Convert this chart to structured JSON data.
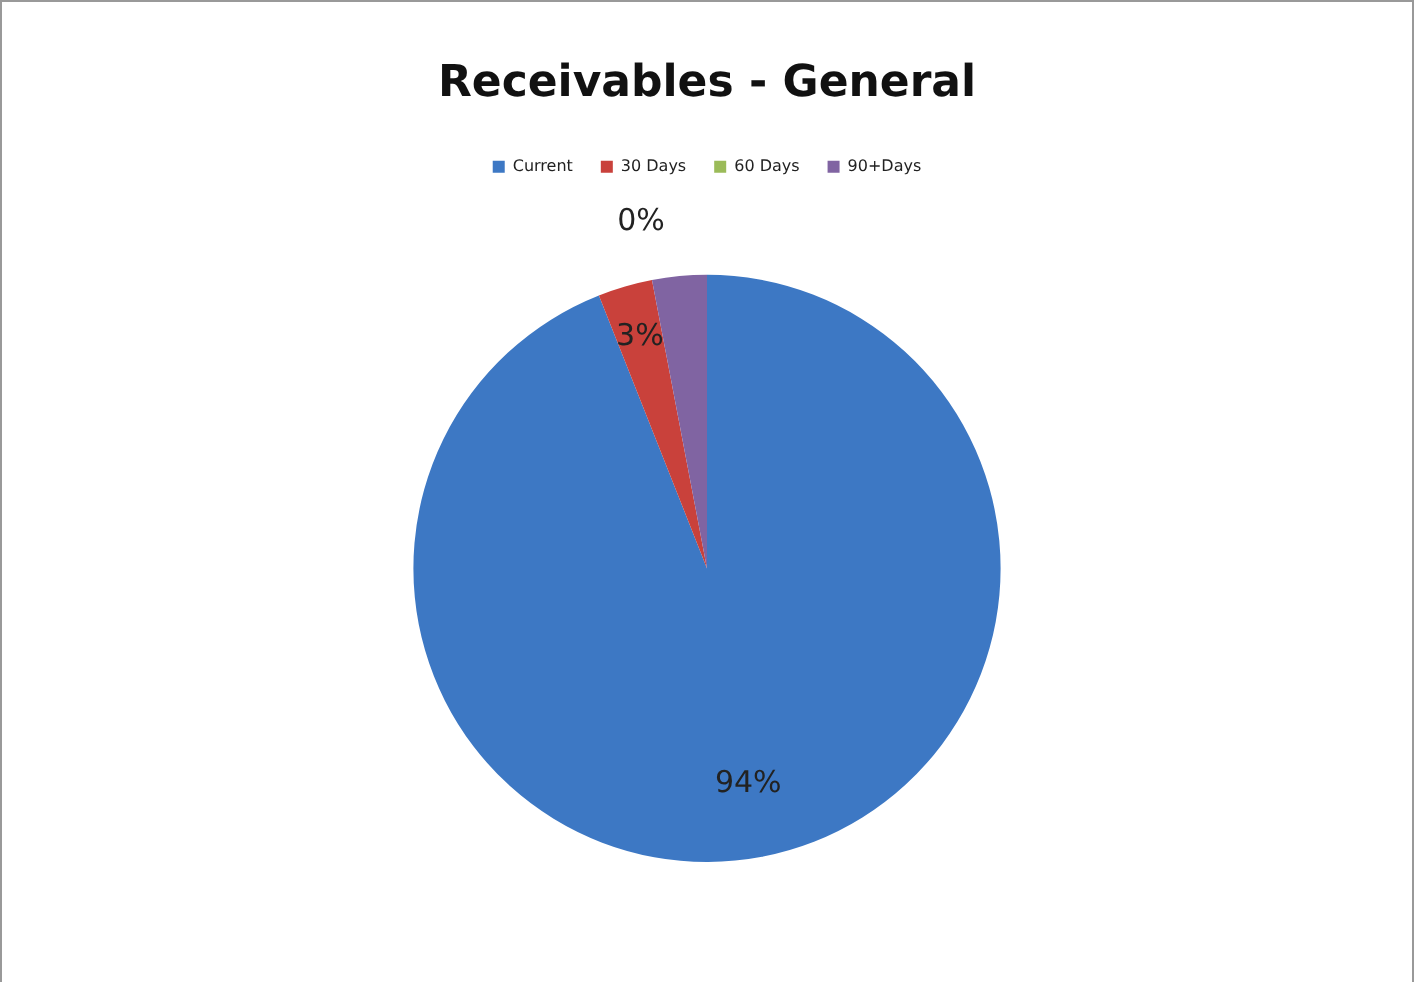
{
  "chart_data": {
    "type": "pie",
    "title": "Receivables - General",
    "categories": [
      "Current",
      "30 Days",
      "60 Days",
      "90+Days"
    ],
    "values": [
      94,
      3,
      0,
      3
    ],
    "colors": [
      "#3d78c4",
      "#c9413b",
      "#9bbb59",
      "#8064a2"
    ],
    "value_labels": [
      "94%",
      "3%",
      "0%",
      null
    ],
    "legend": "top"
  }
}
